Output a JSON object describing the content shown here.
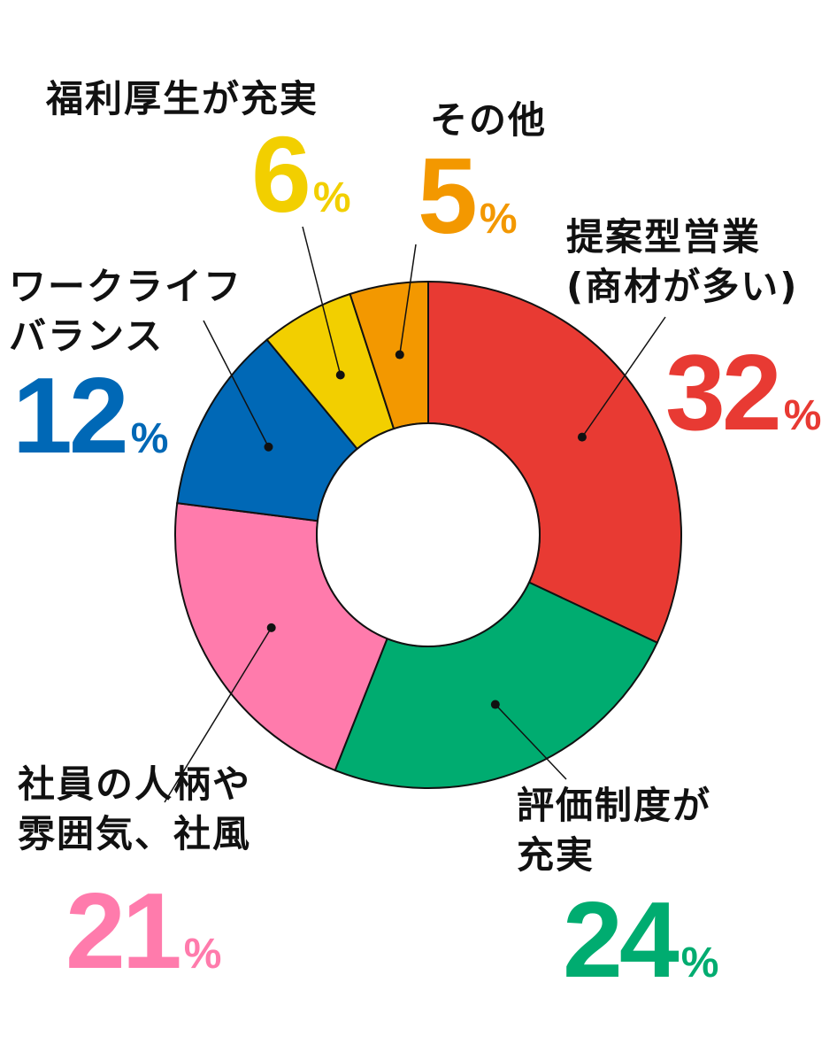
{
  "chart_data": {
    "type": "pie",
    "variant": "donut",
    "start_angle_deg": 0,
    "direction": "clockwise",
    "slices": [
      {
        "lines": [
          "提案型営業",
          "(商材が多い)"
        ],
        "value": 32,
        "unit": "%",
        "color": "#E83A33"
      },
      {
        "lines": [
          "評価制度が",
          "充実"
        ],
        "value": 24,
        "unit": "%",
        "color": "#00AC70"
      },
      {
        "lines": [
          "社員の人柄や",
          "雰囲気、社風"
        ],
        "value": 21,
        "unit": "%",
        "color": "#FF7BAC"
      },
      {
        "lines": [
          "ワークライフ",
          "バランス"
        ],
        "value": 12,
        "unit": "%",
        "color": "#0068B6"
      },
      {
        "lines": [
          "福利厚生が充実"
        ],
        "value": 6,
        "unit": "%",
        "color": "#F2CF00"
      },
      {
        "lines": [
          "その他"
        ],
        "value": 5,
        "unit": "%",
        "color": "#F39800"
      }
    ]
  }
}
